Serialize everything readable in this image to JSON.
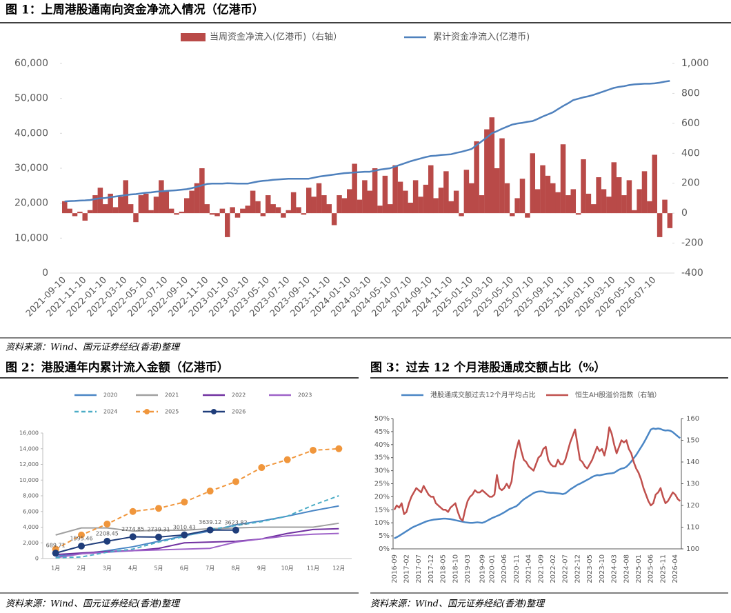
{
  "chart_data": [
    {
      "type": "combo",
      "title": "图 1：上周港股通南向资金净流入情况（亿港币）",
      "categories": [
        "2021-09-10",
        null,
        null,
        null,
        "2021-11-10",
        null,
        null,
        null,
        "2022-01-10",
        null,
        null,
        null,
        "2022-03-10",
        null,
        null,
        null,
        "2022-05-10",
        null,
        null,
        null,
        "2022-07-10",
        null,
        null,
        null,
        "2022-09-10",
        null,
        null,
        null,
        "2022-11-10",
        null,
        null,
        null,
        "2023-01-10",
        null,
        null,
        null,
        "2023-03-10",
        null,
        null,
        null,
        "2023-05-10",
        null,
        null,
        null,
        "2023-07-10",
        null,
        null,
        null,
        "2023-09-10",
        null,
        null,
        null,
        "2023-11-10",
        null,
        null,
        null,
        "2024-01-10",
        null,
        null,
        null,
        "2024-03-10",
        null,
        null,
        null,
        "2024-05-10",
        null,
        null,
        null,
        "2024-07-10",
        null,
        null,
        null,
        "2024-09-10",
        null,
        null,
        null,
        "2024-11-10",
        null,
        null,
        null,
        "2025-01-10",
        null,
        null,
        null,
        "2025-03-10",
        null,
        null,
        null,
        "2025-05-10",
        null,
        null,
        null,
        "2025-07-10",
        null,
        null,
        null,
        "2025-09-10",
        null,
        null,
        null,
        "2025-11-10",
        null,
        null,
        null,
        "2026-01-10",
        null,
        null,
        null,
        "2026-03-10",
        null,
        null,
        null,
        "2026-05-10",
        null,
        null,
        null,
        "2026-07-10",
        null,
        null,
        null
      ],
      "series": [
        {
          "name": "当周资金净流入(亿港币)（右轴）",
          "type": "bar",
          "axis": "y2",
          "color": "#b94a48",
          "values": [
            80,
            30,
            -20,
            10,
            -50,
            20,
            120,
            170,
            60,
            130,
            40,
            110,
            220,
            60,
            -60,
            120,
            130,
            20,
            110,
            220,
            150,
            30,
            -10,
            10,
            100,
            150,
            200,
            300,
            60,
            -10,
            -20,
            30,
            -160,
            40,
            -30,
            30,
            50,
            150,
            80,
            -20,
            120,
            60,
            40,
            -30,
            20,
            140,
            40,
            -10,
            170,
            110,
            200,
            120,
            60,
            -80,
            120,
            100,
            160,
            330,
            90,
            220,
            150,
            300,
            50,
            250,
            60,
            320,
            210,
            150,
            70,
            220,
            110,
            190,
            320,
            100,
            170,
            280,
            80,
            150,
            -20,
            290,
            200,
            480,
            120,
            560,
            640,
            300,
            500,
            200,
            -20,
            100,
            230,
            -30,
            400,
            160,
            320,
            250,
            200,
            140,
            460,
            120,
            160,
            -10,
            360,
            130,
            60,
            240,
            160,
            110,
            340,
            240,
            120,
            220,
            20,
            160,
            280,
            80,
            390,
            -160,
            90,
            -100
          ]
        },
        {
          "name": "累计资金净流入(亿港币)",
          "type": "line",
          "color": "#4f81bd",
          "values": [
            20500,
            20600,
            20650,
            20750,
            20800,
            20900,
            21200,
            21400,
            21500,
            21700,
            21900,
            22100,
            22300,
            22500,
            22600,
            22800,
            23000,
            23100,
            23300,
            23400,
            23500,
            23600,
            23700,
            23850,
            24000,
            24300,
            24700,
            25100,
            25500,
            25600,
            25600,
            25600,
            25700,
            25650,
            25600,
            25600,
            25600,
            25900,
            26200,
            26400,
            26500,
            26700,
            26800,
            26900,
            27000,
            27000,
            27000,
            27000,
            27000,
            27300,
            27600,
            27800,
            28000,
            28200,
            28400,
            28600,
            28700,
            28800,
            28900,
            29000,
            29000,
            29300,
            29600,
            29800,
            30000,
            30500,
            31000,
            31500,
            32000,
            32400,
            32800,
            33200,
            33500,
            33600,
            33800,
            33900,
            34000,
            34400,
            34700,
            35100,
            35500,
            36600,
            37700,
            38800,
            40000,
            40600,
            41300,
            41900,
            42500,
            42800,
            43000,
            43300,
            43500,
            44100,
            44800,
            45400,
            46000,
            46900,
            47800,
            48600,
            49500,
            49900,
            50300,
            50600,
            51000,
            51500,
            52000,
            52500,
            53000,
            53300,
            53500,
            53800,
            54000,
            54100,
            54200,
            54200,
            54300,
            54500,
            54800,
            55000
          ]
        }
      ],
      "ylim": [
        0,
        60000
      ],
      "yticks": [
        0,
        {
          "value": 10000,
          "label": "10,000"
        },
        {
          "value": 20000,
          "label": "20,000"
        },
        {
          "value": 30000,
          "label": "30,000"
        },
        {
          "value": 40000,
          "label": "40,000"
        },
        {
          "value": 50000,
          "label": "50,000"
        },
        {
          "value": 60000,
          "label": "60,000"
        }
      ],
      "y2lim": [
        -400,
        1000
      ],
      "y2ticks": [
        -400,
        -200,
        0,
        200,
        400,
        600,
        800,
        {
          "value": 1000,
          "label": "1,000"
        }
      ],
      "grid": false,
      "legend": "top"
    },
    {
      "type": "line",
      "title": "图 2：港股通年内累计流入金额（亿港币）",
      "categories": [
        "1月",
        "2月",
        "3月",
        "4月",
        "5月",
        "6月",
        "7月",
        "8月",
        "9月",
        "10月",
        "11月",
        "12月"
      ],
      "series": [
        {
          "name": "2020",
          "color": "#4a86c5",
          "values": [
            300,
            600,
            1000,
            1500,
            2200,
            2900,
            3500,
            4300,
            4800,
            5400,
            6100,
            6700
          ]
        },
        {
          "name": "2021",
          "color": "#a0a0a0",
          "values": [
            3000,
            3900,
            3900,
            3500,
            3600,
            3600,
            3800,
            3900,
            4000,
            4000,
            4000,
            4500
          ]
        },
        {
          "name": "2022",
          "color": "#7030a0",
          "values": [
            500,
            700,
            900,
            1000,
            1300,
            2000,
            2100,
            2200,
            2500,
            3200,
            3700,
            3800
          ]
        },
        {
          "name": "2023",
          "color": "#9e62c8",
          "values": [
            100,
            600,
            800,
            1000,
            1100,
            1200,
            1300,
            2100,
            2500,
            2900,
            3100,
            3200
          ]
        },
        {
          "name": "2024",
          "color": "#4bacc6",
          "dash": true,
          "values": [
            100,
            200,
            800,
            1200,
            2100,
            2800,
            3700,
            4200,
            4700,
            5400,
            6800,
            8000
          ]
        },
        {
          "name": "2025",
          "color": "#f0963c",
          "dash": true,
          "markers": true,
          "values": [
            1200,
            3000,
            4400,
            6000,
            6400,
            7200,
            8600,
            9800,
            11600,
            12600,
            13800,
            14000
          ]
        },
        {
          "name": "2026",
          "color": "#1f3d7a",
          "markers": true,
          "data_labels": true,
          "values": [
            689.71,
            1595.46,
            2208.45,
            2774.85,
            2739.31,
            3010.43,
            3639.12,
            3623.82,
            null,
            null,
            null,
            null
          ]
        }
      ],
      "ylim": [
        0,
        16000
      ],
      "yticks": [
        0,
        {
          "value": 2000,
          "label": "2,000"
        },
        {
          "value": 4000,
          "label": "4,000"
        },
        {
          "value": 6000,
          "label": "6,000"
        },
        {
          "value": 8000,
          "label": "8,000"
        },
        {
          "value": 10000,
          "label": "10,000"
        },
        {
          "value": 12000,
          "label": "12,000"
        },
        {
          "value": 14000,
          "label": "14,000"
        },
        {
          "value": 16000,
          "label": "16,000"
        }
      ],
      "grid": false,
      "legend": "top"
    },
    {
      "type": "line",
      "title": "图 3：过去 12 个月港股通成交额占比（%）",
      "categories": [
        "2016-09",
        null,
        null,
        null,
        null,
        "2017-02",
        null,
        null,
        null,
        null,
        "2017-07",
        null,
        null,
        null,
        null,
        "2017-12",
        null,
        null,
        null,
        null,
        "2018-05",
        null,
        null,
        null,
        null,
        "2018-10",
        null,
        null,
        null,
        null,
        "2019-03",
        null,
        null,
        null,
        null,
        null,
        "2019-09",
        null,
        null,
        null,
        "2020-01",
        null,
        null,
        null,
        null,
        "2020-06",
        null,
        null,
        null,
        null,
        "2020-11",
        null,
        null,
        null,
        null,
        "2021-04",
        null,
        null,
        null,
        null,
        "2021-09",
        null,
        null,
        null,
        null,
        "2022-02",
        null,
        null,
        null,
        null,
        "2022-07",
        null,
        null,
        null,
        null,
        "2022-12",
        null,
        null,
        null,
        null,
        "2023-05",
        null,
        null,
        null,
        null,
        "2023-10",
        null,
        null,
        null,
        null,
        "2024-03",
        null,
        null,
        null,
        null,
        "2024-08",
        null,
        null,
        null,
        null,
        "2025-01",
        null,
        null,
        null,
        null,
        "2025-06",
        null,
        null,
        null,
        null,
        "2025-11",
        null,
        null,
        null,
        null,
        "2026-04",
        null,
        null
      ],
      "series": [
        {
          "name": "港股通成交额过去12个月平均占比",
          "color": "#4a86c5",
          "values": [
            4.0,
            4.5,
            5.0,
            5.6,
            6.2,
            6.8,
            7.4,
            8.0,
            8.5,
            8.9,
            9.3,
            9.7,
            10.1,
            10.5,
            10.8,
            11.0,
            11.2,
            11.3,
            11.4,
            11.5,
            11.6,
            11.6,
            11.5,
            11.4,
            11.2,
            11.0,
            10.8,
            10.6,
            10.4,
            10.2,
            10.1,
            10.0,
            10.0,
            10.1,
            10.2,
            10.1,
            10.0,
            10.3,
            10.8,
            11.3,
            11.8,
            12.2,
            12.6,
            13.0,
            13.5,
            14.0,
            14.6,
            15.2,
            15.6,
            16.0,
            16.4,
            17.2,
            18.2,
            19.0,
            19.6,
            20.2,
            20.8,
            21.4,
            21.8,
            22.0,
            22.1,
            22.0,
            21.7,
            21.6,
            21.5,
            21.5,
            21.4,
            21.3,
            21.2,
            21.0,
            21.3,
            22.0,
            22.8,
            23.4,
            24.0,
            24.6,
            25.0,
            25.5,
            26.0,
            26.5,
            27.0,
            27.6,
            28.0,
            28.3,
            28.2,
            28.4,
            28.6,
            28.8,
            28.9,
            29.0,
            29.2,
            29.8,
            30.4,
            30.8,
            31.0,
            31.5,
            32.4,
            33.5,
            34.8,
            36.0,
            37.5,
            39.0,
            40.5,
            42.2,
            44.0,
            45.8,
            46.2,
            46.0,
            46.2,
            46.0,
            45.6,
            45.4,
            45.5,
            45.3,
            44.8,
            44.0,
            43.2,
            42.5
          ]
        },
        {
          "name": "恒生AH股溢价指数（右轴）",
          "color": "#c0504d",
          "axis": "y2",
          "values": [
            118,
            120,
            119,
            121,
            116,
            117,
            121,
            124,
            126,
            128,
            127,
            126,
            129,
            127,
            125,
            124,
            124,
            121,
            120,
            119,
            118,
            118,
            117,
            119,
            120,
            121,
            117,
            114,
            113,
            118,
            122,
            124,
            125,
            127,
            126,
            126,
            127,
            126,
            125,
            124,
            124,
            125,
            134,
            128,
            127,
            128,
            130,
            128,
            131,
            140,
            146,
            150,
            145,
            141,
            140,
            138,
            137,
            136,
            139,
            142,
            143,
            146,
            147,
            141,
            139,
            138,
            138,
            141,
            139,
            139,
            141,
            145,
            149,
            152,
            155,
            148,
            141,
            140,
            138,
            137,
            139,
            141,
            144,
            147,
            145,
            146,
            143,
            148,
            156,
            153,
            148,
            144,
            147,
            150,
            149,
            150,
            146,
            144,
            140,
            137,
            135,
            132,
            128,
            125,
            122,
            120,
            121,
            125,
            126,
            128,
            124,
            121,
            122,
            124,
            126,
            125,
            123,
            122
          ]
        }
      ],
      "ylim": [
        0,
        50
      ],
      "yticks": [
        {
          "value": 0,
          "label": "0%"
        },
        {
          "value": 5,
          "label": "5%"
        },
        {
          "value": 10,
          "label": "10%"
        },
        {
          "value": 15,
          "label": "15%"
        },
        {
          "value": 20,
          "label": "20%"
        },
        {
          "value": 25,
          "label": "25%"
        },
        {
          "value": 30,
          "label": "30%"
        },
        {
          "value": 35,
          "label": "35%"
        },
        {
          "value": 40,
          "label": "40%"
        },
        {
          "value": 45,
          "label": "45%"
        },
        {
          "value": 50,
          "label": "50%"
        }
      ],
      "y2lim": [
        100,
        160
      ],
      "y2ticks": [
        100,
        110,
        120,
        130,
        140,
        150,
        160
      ],
      "grid": false,
      "legend": "top"
    }
  ],
  "sources": [
    "资料来源：Wind、国元证券经纪(香港)整理",
    "资料来源：Wind、国元证券经纪(香港)整理",
    "资料来源：Wind、国元证券经纪(香港)整理"
  ]
}
